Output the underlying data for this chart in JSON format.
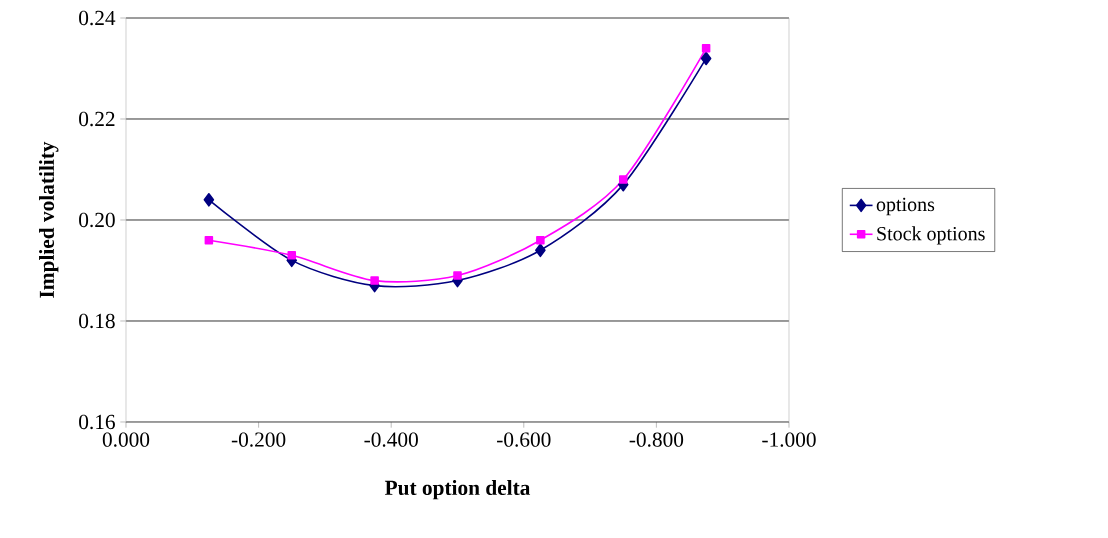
{
  "chart_data": {
    "type": "line",
    "xlabel": "Put option delta",
    "ylabel": "Implied volatility",
    "x": [
      -0.125,
      -0.25,
      -0.375,
      -0.5,
      -0.625,
      -0.75,
      -0.875
    ],
    "series": [
      {
        "name": "options",
        "color": "#000080",
        "marker": "diamond",
        "values": [
          0.204,
          0.192,
          0.187,
          0.188,
          0.194,
          0.207,
          0.232
        ]
      },
      {
        "name": "Stock options",
        "color": "#ff00ff",
        "marker": "square",
        "values": [
          0.196,
          0.193,
          0.188,
          0.189,
          0.196,
          0.208,
          0.234
        ]
      }
    ],
    "xlim": [
      0,
      -1
    ],
    "xticks": [
      {
        "value": 0,
        "label": "0.000"
      },
      {
        "value": -0.2,
        "label": "-0.200"
      },
      {
        "value": -0.4,
        "label": "-0.400"
      },
      {
        "value": -0.6,
        "label": "-0.600"
      },
      {
        "value": -0.8,
        "label": "-0.800"
      },
      {
        "value": -1,
        "label": "-1.000"
      }
    ],
    "ylim": [
      0.16,
      0.24
    ],
    "yticks": [
      0.16,
      0.18,
      {
        "value": 0.2,
        "label": "0.20"
      },
      0.22,
      0.24
    ],
    "grid": "y",
    "legend": "right",
    "line_style": "solid"
  }
}
